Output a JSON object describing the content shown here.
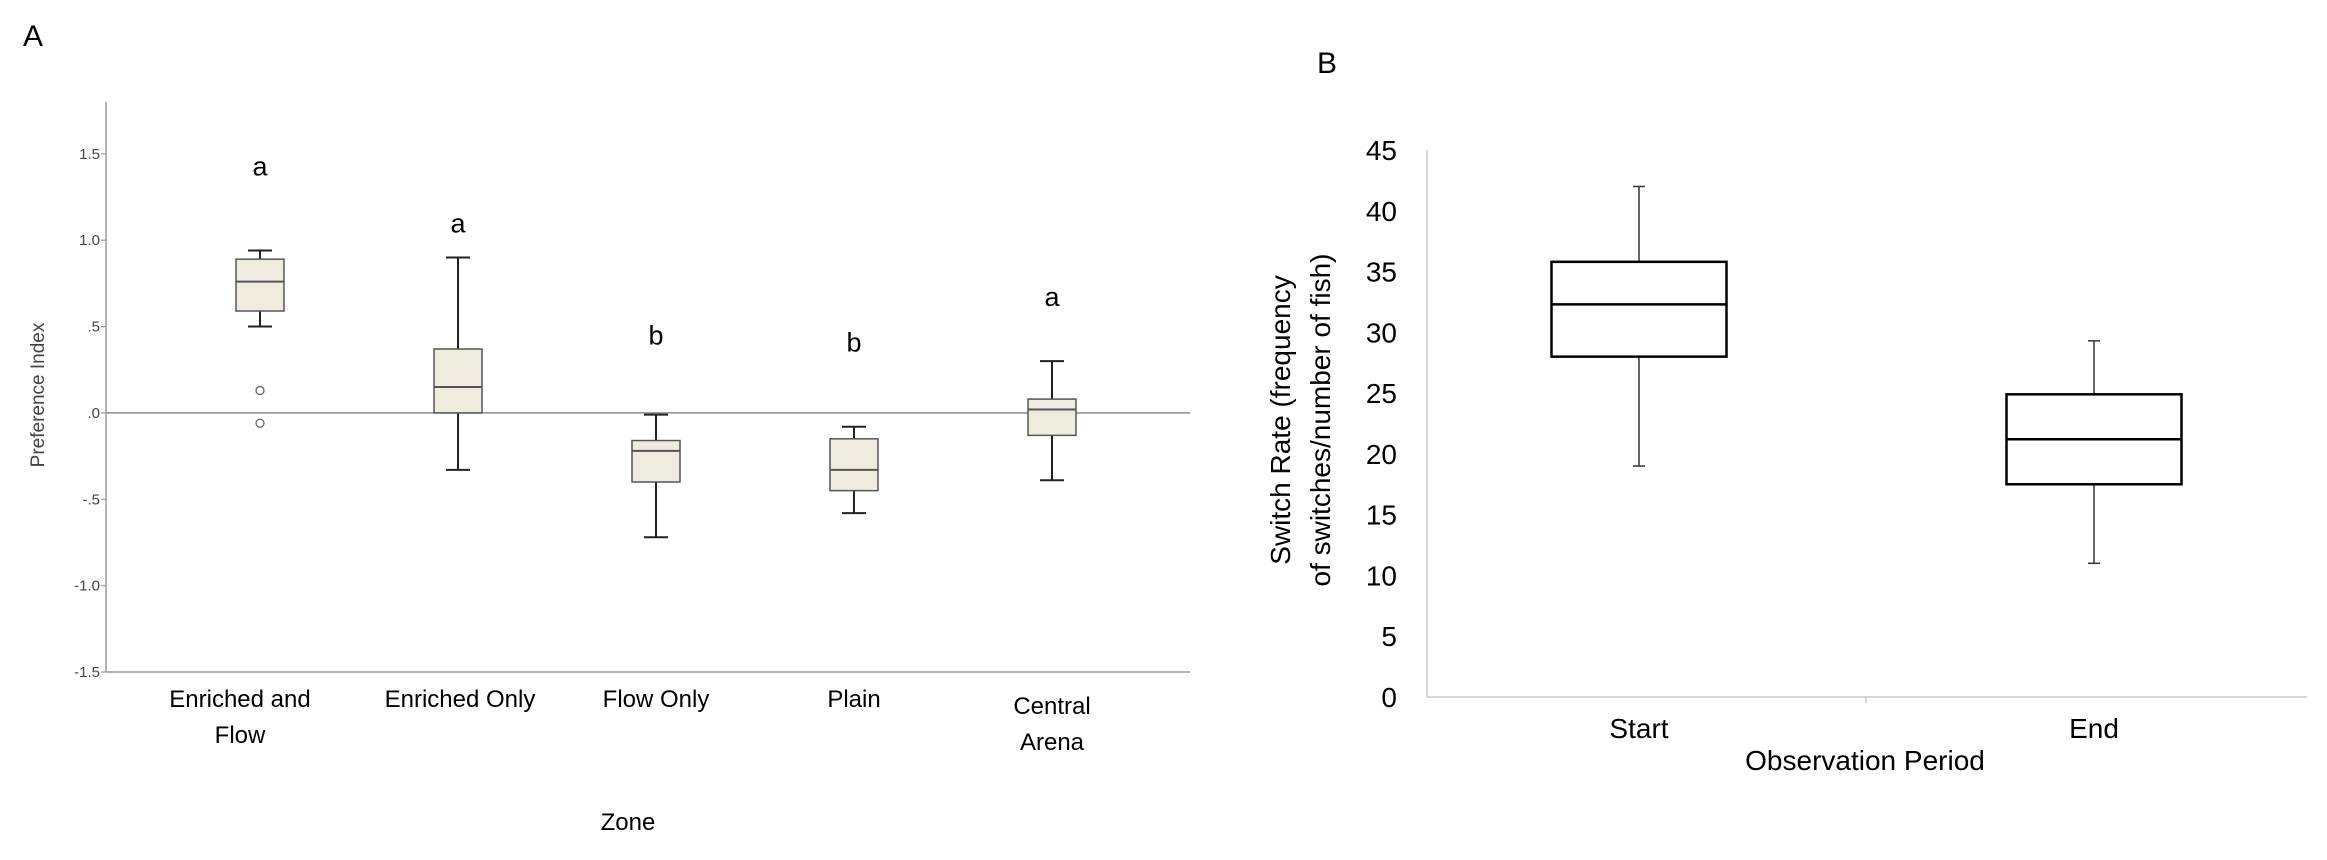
{
  "panels": {
    "a_letter": "A",
    "b_letter": "B"
  },
  "chart_data": [
    {
      "type": "box",
      "panel": "A",
      "xlabel": "Zone",
      "ylabel": "Preference Index",
      "ylim": [
        -1.5,
        1.8
      ],
      "yticks": [
        -1.5,
        -1.0,
        -0.5,
        0.0,
        0.5,
        1.0,
        1.5
      ],
      "ytick_labels": [
        "-1.5",
        "-1.0",
        "-.5",
        ".0",
        ".5",
        "1.0",
        "1.5"
      ],
      "reference_line": 0.0,
      "box_color": "#efecdf",
      "categories": [
        {
          "label_lines": [
            "Enriched and",
            "Flow"
          ],
          "min": 0.5,
          "q1": 0.59,
          "median": 0.76,
          "q3": 0.89,
          "max": 0.94,
          "outliers": [
            0.13,
            -0.06
          ],
          "letter": "a"
        },
        {
          "label_lines": [
            "Enriched Only"
          ],
          "min": -0.33,
          "q1": 0.0,
          "median": 0.15,
          "q3": 0.37,
          "max": 0.9,
          "outliers": [],
          "letter": "a"
        },
        {
          "label_lines": [
            "Flow Only"
          ],
          "min": -0.72,
          "q1": -0.4,
          "median": -0.22,
          "q3": -0.16,
          "max": -0.01,
          "outliers": [],
          "letter": "b"
        },
        {
          "label_lines": [
            "Plain"
          ],
          "min": -0.58,
          "q1": -0.45,
          "median": -0.33,
          "q3": -0.15,
          "max": -0.08,
          "outliers": [],
          "letter": "b"
        },
        {
          "label_lines": [
            "Central",
            "Arena"
          ],
          "min": -0.39,
          "q1": -0.13,
          "median": 0.02,
          "q3": 0.08,
          "max": 0.3,
          "outliers": [],
          "letter": "a"
        }
      ]
    },
    {
      "type": "box",
      "panel": "B",
      "xlabel": "Observation Period",
      "ylabel_lines": [
        "Switch Rate (frequency",
        "of switches/number of fish)"
      ],
      "ylim": [
        0,
        45
      ],
      "yticks": [
        0,
        5,
        10,
        15,
        20,
        25,
        30,
        35,
        40,
        45
      ],
      "box_color": "#ffffff",
      "categories": [
        {
          "label": "Start",
          "min": 19,
          "q1": 28,
          "median": 32.3,
          "q3": 35.8,
          "max": 42
        },
        {
          "label": "End",
          "min": 11,
          "q1": 17.5,
          "median": 21.2,
          "q3": 24.9,
          "max": 29.3
        }
      ]
    }
  ]
}
